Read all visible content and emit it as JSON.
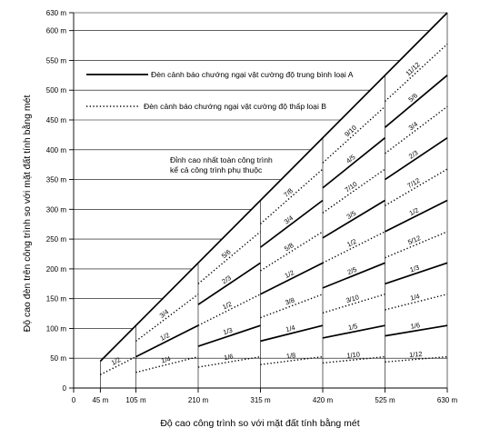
{
  "chart_data": {
    "type": "line",
    "xlabel": "Độ cao công trình so với mặt đất tính bằng mét",
    "ylabel": "Độ cao đèn trên công trình so với mặt đất tính bằng mét",
    "xlim": [
      0,
      630
    ],
    "ylim": [
      0,
      630
    ],
    "x_ticks": [
      0,
      45,
      105,
      210,
      315,
      420,
      525,
      630
    ],
    "x_tick_labels": [
      "0",
      "45 m",
      "105 m",
      "210 m",
      "315 m",
      "420 m",
      "525 m",
      "630 m"
    ],
    "y_ticks": [
      0,
      50,
      100,
      150,
      200,
      250,
      300,
      350,
      400,
      450,
      500,
      550,
      600,
      630
    ],
    "y_tick_labels": [
      "0",
      "50 m",
      "100 m",
      "150 m",
      "200 m",
      "250 m",
      "300 m",
      "350 m",
      "400 m",
      "450 m",
      "500 m",
      "550 m",
      "600 m",
      "630 m"
    ],
    "grid": true,
    "legend": [
      {
        "label": "Đèn cảnh báo chướng ngại vật cường độ trung bình loại A",
        "style": "solid"
      },
      {
        "label": "Đèn cảnh báo chướng ngại vật cường độ thấp  loại B",
        "style": "dotted"
      }
    ],
    "annotation": [
      "Đỉnh cao nhất toàn công trình",
      "kể cả công trình phụ thuộc"
    ],
    "envelope": {
      "x": [
        45,
        630
      ],
      "y": [
        45,
        630
      ],
      "style": "solid"
    },
    "series": [
      {
        "band": 1,
        "style": "dotted",
        "fraction_label": "1/2",
        "x": [
          45,
          105
        ],
        "y": [
          22.5,
          52.5
        ]
      },
      {
        "band": 2,
        "style": "dotted",
        "fraction_label": "1/4",
        "x": [
          105,
          210
        ],
        "y": [
          26.25,
          52.5
        ]
      },
      {
        "band": 2,
        "style": "solid",
        "fraction_label": "1/2",
        "x": [
          105,
          210
        ],
        "y": [
          52.5,
          105
        ]
      },
      {
        "band": 2,
        "style": "dotted",
        "fraction_label": "3/4",
        "x": [
          105,
          210
        ],
        "y": [
          78.75,
          157.5
        ]
      },
      {
        "band": 3,
        "style": "dotted",
        "fraction_label": "1/6",
        "x": [
          210,
          315
        ],
        "y": [
          35,
          52.5
        ]
      },
      {
        "band": 3,
        "style": "solid",
        "fraction_label": "1/3",
        "x": [
          210,
          315
        ],
        "y": [
          70,
          105
        ]
      },
      {
        "band": 3,
        "style": "dotted",
        "fraction_label": "1/2",
        "x": [
          210,
          315
        ],
        "y": [
          105,
          157.5
        ]
      },
      {
        "band": 3,
        "style": "solid",
        "fraction_label": "2/3",
        "x": [
          210,
          315
        ],
        "y": [
          140,
          210
        ]
      },
      {
        "band": 3,
        "style": "dotted",
        "fraction_label": "5/6",
        "x": [
          210,
          315
        ],
        "y": [
          175,
          262.5
        ]
      },
      {
        "band": 4,
        "style": "dotted",
        "fraction_label": "1/8",
        "x": [
          315,
          420
        ],
        "y": [
          39.375,
          52.5
        ]
      },
      {
        "band": 4,
        "style": "solid",
        "fraction_label": "1/4",
        "x": [
          315,
          420
        ],
        "y": [
          78.75,
          105
        ]
      },
      {
        "band": 4,
        "style": "dotted",
        "fraction_label": "3/8",
        "x": [
          315,
          420
        ],
        "y": [
          118.125,
          157.5
        ]
      },
      {
        "band": 4,
        "style": "solid",
        "fraction_label": "1/2",
        "x": [
          315,
          420
        ],
        "y": [
          157.5,
          210
        ]
      },
      {
        "band": 4,
        "style": "dotted",
        "fraction_label": "5/8",
        "x": [
          315,
          420
        ],
        "y": [
          196.875,
          262.5
        ]
      },
      {
        "band": 4,
        "style": "solid",
        "fraction_label": "3/4",
        "x": [
          315,
          420
        ],
        "y": [
          236.25,
          315
        ]
      },
      {
        "band": 4,
        "style": "dotted",
        "fraction_label": "7/8",
        "x": [
          315,
          420
        ],
        "y": [
          275.625,
          367.5
        ]
      },
      {
        "band": 5,
        "style": "dotted",
        "fraction_label": "1/10",
        "x": [
          420,
          525
        ],
        "y": [
          42,
          52.5
        ]
      },
      {
        "band": 5,
        "style": "solid",
        "fraction_label": "1/5",
        "x": [
          420,
          525
        ],
        "y": [
          84,
          105
        ]
      },
      {
        "band": 5,
        "style": "dotted",
        "fraction_label": "3/10",
        "x": [
          420,
          525
        ],
        "y": [
          126,
          157.5
        ]
      },
      {
        "band": 5,
        "style": "solid",
        "fraction_label": "2/5",
        "x": [
          420,
          525
        ],
        "y": [
          168,
          210
        ]
      },
      {
        "band": 5,
        "style": "dotted",
        "fraction_label": "1/2",
        "x": [
          420,
          525
        ],
        "y": [
          210,
          262.5
        ]
      },
      {
        "band": 5,
        "style": "solid",
        "fraction_label": "3/5",
        "x": [
          420,
          525
        ],
        "y": [
          252,
          315
        ]
      },
      {
        "band": 5,
        "style": "dotted",
        "fraction_label": "7/10",
        "x": [
          420,
          525
        ],
        "y": [
          294,
          367.5
        ]
      },
      {
        "band": 5,
        "style": "solid",
        "fraction_label": "4/5",
        "x": [
          420,
          525
        ],
        "y": [
          336,
          420
        ]
      },
      {
        "band": 5,
        "style": "dotted",
        "fraction_label": "9/10",
        "x": [
          420,
          525
        ],
        "y": [
          378,
          472.5
        ]
      },
      {
        "band": 6,
        "style": "dotted",
        "fraction_label": "1/12",
        "x": [
          525,
          630
        ],
        "y": [
          43.75,
          52.5
        ]
      },
      {
        "band": 6,
        "style": "solid",
        "fraction_label": "1/6",
        "x": [
          525,
          630
        ],
        "y": [
          87.5,
          105
        ]
      },
      {
        "band": 6,
        "style": "dotted",
        "fraction_label": "1/4",
        "x": [
          525,
          630
        ],
        "y": [
          131.25,
          157.5
        ]
      },
      {
        "band": 6,
        "style": "solid",
        "fraction_label": "1/3",
        "x": [
          525,
          630
        ],
        "y": [
          175,
          210
        ]
      },
      {
        "band": 6,
        "style": "dotted",
        "fraction_label": "5/12",
        "x": [
          525,
          630
        ],
        "y": [
          218.75,
          262.5
        ]
      },
      {
        "band": 6,
        "style": "solid",
        "fraction_label": "1/2",
        "x": [
          525,
          630
        ],
        "y": [
          262.5,
          315
        ]
      },
      {
        "band": 6,
        "style": "dotted",
        "fraction_label": "7/12",
        "x": [
          525,
          630
        ],
        "y": [
          306.25,
          367.5
        ]
      },
      {
        "band": 6,
        "style": "solid",
        "fraction_label": "2/3",
        "x": [
          525,
          630
        ],
        "y": [
          350,
          420
        ]
      },
      {
        "band": 6,
        "style": "dotted",
        "fraction_label": "3/4",
        "x": [
          525,
          630
        ],
        "y": [
          393.75,
          472.5
        ]
      },
      {
        "band": 6,
        "style": "solid",
        "fraction_label": "5/6",
        "x": [
          525,
          630
        ],
        "y": [
          437.5,
          525
        ]
      },
      {
        "band": 6,
        "style": "dotted",
        "fraction_label": "11/12",
        "x": [
          525,
          630
        ],
        "y": [
          481.25,
          577.5
        ]
      }
    ]
  }
}
